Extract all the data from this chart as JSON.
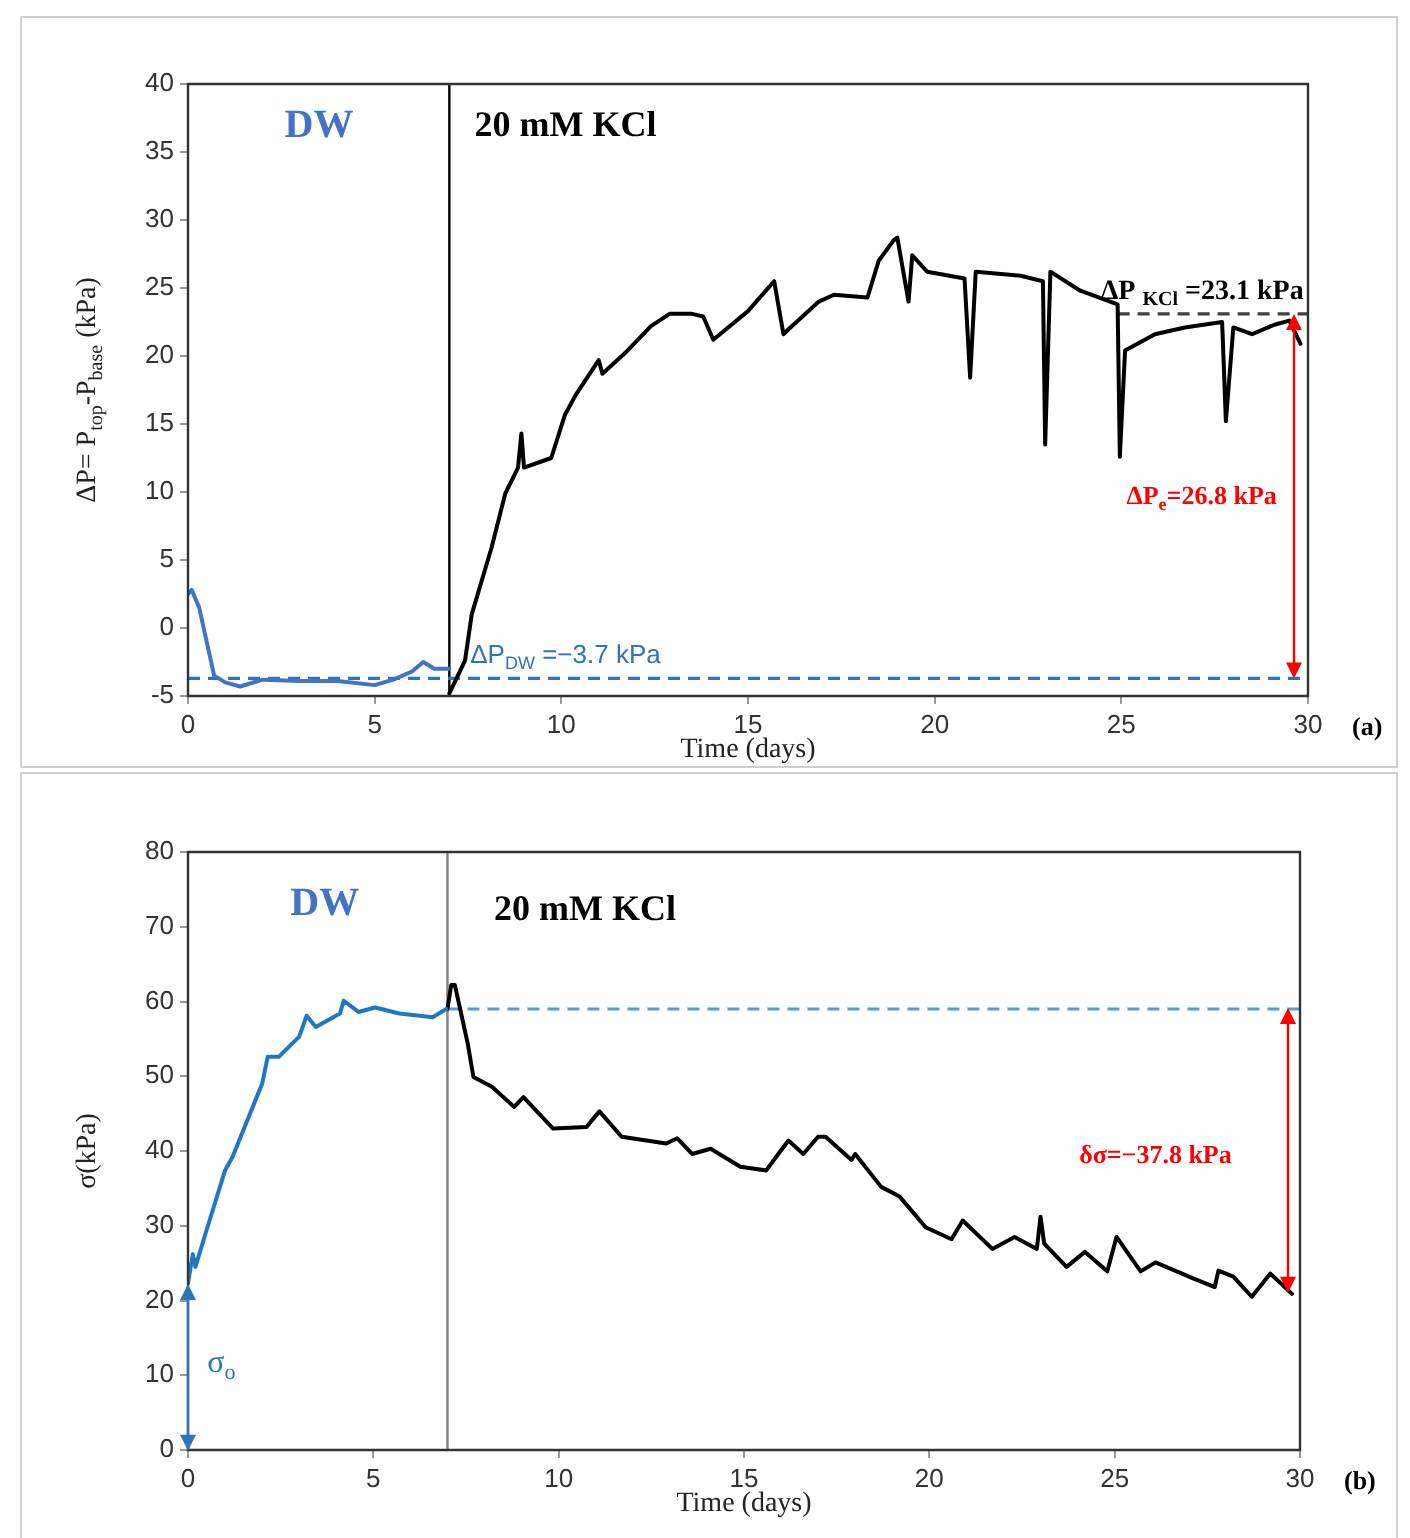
{
  "chart_data": [
    {
      "type": "line",
      "xlabel": "Time (days)",
      "ylabel": "ΔP= P$_{top}$-P$_{base}$ (kPa)",
      "xlim": [
        0,
        30
      ],
      "xticks": [
        0,
        5,
        10,
        15,
        20,
        25,
        30
      ],
      "ylim": [
        -5,
        40
      ],
      "yticks": [
        -5,
        0,
        5,
        10,
        15,
        20,
        25,
        30,
        35,
        40
      ],
      "grid": false,
      "legend": false,
      "marker": "none",
      "line_style": "solid",
      "series": [
        {
          "color": "#4472c4",
          "x": [
            0,
            0.1,
            0.3,
            0.5,
            0.7,
            1,
            1.4,
            2,
            3,
            4,
            5,
            5.5,
            6,
            6.3,
            6.6,
            7
          ],
          "values": [
            2.5,
            2.8,
            1.5,
            -1,
            -3.5,
            -4,
            -4.3,
            -3.8,
            -3.9,
            -3.9,
            -4.2,
            -3.8,
            -3.2,
            -2.5,
            -3,
            -3
          ]
        },
        {
          "color": "#000000",
          "x": [
            7,
            7.42,
            7.6,
            8.13,
            8.5,
            8.84,
            8.93,
            9,
            9.73,
            10.1,
            10.4,
            11,
            11.1,
            11.7,
            12.4,
            12.9,
            13.5,
            13.8,
            14.07,
            15,
            15.7,
            15.95,
            16.1,
            16.9,
            17.3,
            18.2,
            18.5,
            18.9,
            19,
            19.3,
            19.4,
            19.8,
            20.8,
            20.95,
            21.1,
            22.3,
            22.9,
            22.96,
            23.1,
            23.9,
            24.9,
            24.96,
            25.1,
            25.9,
            26.7,
            27.7,
            27.8,
            28,
            28.5,
            29.1,
            29.5,
            29.8
          ],
          "values": [
            -4.8,
            -2.4,
            1,
            5.9,
            9.9,
            11.8,
            14.3,
            11.8,
            12.5,
            15.7,
            17.2,
            19.7,
            18.7,
            20.2,
            22.2,
            23.1,
            23.1,
            22.9,
            21.2,
            23.3,
            25.5,
            21.6,
            22,
            24,
            24.5,
            24.3,
            27,
            28.5,
            28.7,
            24,
            27.4,
            26.2,
            25.7,
            18.4,
            26.2,
            25.9,
            25.5,
            13.5,
            26.2,
            24.8,
            23.8,
            12.6,
            20.4,
            21.6,
            22.1,
            22.5,
            15.2,
            22.1,
            21.6,
            22.3,
            22.6,
            20.9
          ]
        }
      ],
      "ref_lines": [
        {
          "axis": "x",
          "value": 7,
          "color": "#000000"
        },
        {
          "axis": "y",
          "value": -3.7,
          "label": "ΔP$_{DW}$ =−3.7 kPa",
          "color": "#2e75b6",
          "line_style": "dashed"
        },
        {
          "axis": "y",
          "value": 23.1,
          "label": "ΔP $_{KCl}$ =23.1 kPa",
          "color": "#404040",
          "line_style": "dashed"
        }
      ],
      "annotations": [
        "DW",
        "20 mM KCl",
        "ΔP$_{e}$=26.8 kPa",
        "(a)"
      ]
    },
    {
      "type": "line",
      "xlabel": "Time (days)",
      "ylabel": "σ(kPa)",
      "xlim": [
        0,
        30
      ],
      "xticks": [
        0,
        5,
        10,
        15,
        20,
        25,
        30
      ],
      "ylim": [
        0,
        80
      ],
      "yticks": [
        0,
        10,
        20,
        30,
        40,
        50,
        60,
        70,
        80
      ],
      "grid": false,
      "legend": false,
      "marker": "none",
      "line_style": "solid",
      "series": [
        {
          "color": "#1f77c4",
          "x": [
            0,
            0.13,
            0.2,
            0.5,
            1,
            1.2,
            2,
            2.15,
            2.45,
            3,
            3.2,
            3.45,
            4.1,
            4.2,
            4.6,
            5.05,
            5.7,
            6.6,
            6.97
          ],
          "values": [
            22.3,
            26.2,
            24.5,
            29.4,
            37.4,
            39.2,
            49,
            52.6,
            52.6,
            55.3,
            58.1,
            56.6,
            58.4,
            60.1,
            58.6,
            59.2,
            58.4,
            57.9,
            59
          ]
        },
        {
          "color": "#000000",
          "x": [
            7,
            7.1,
            7.2,
            7.55,
            7.7,
            8.2,
            8.8,
            9.05,
            9.85,
            10.75,
            11.1,
            11.7,
            12.9,
            13.2,
            13.6,
            14.1,
            14.9,
            15.6,
            16,
            16.2,
            16.6,
            17,
            17.2,
            17.9,
            18,
            18.7,
            19.2,
            19.9,
            20.6,
            20.9,
            21.7,
            22.3,
            22.9,
            23,
            23.1,
            23.7,
            24.2,
            24.8,
            25.05,
            25.7,
            26.1,
            27.1,
            27.7,
            27.8,
            28.2,
            28.7,
            29.2,
            29.78
          ],
          "values": [
            59,
            62.2,
            62.2,
            54.3,
            49.9,
            48.6,
            45.9,
            47.2,
            43,
            43.2,
            45.3,
            41.9,
            41,
            41.7,
            39.6,
            40.3,
            37.9,
            37.4,
            40.1,
            41.4,
            39.6,
            41.9,
            41.9,
            38.8,
            39.6,
            35.2,
            33.9,
            29.8,
            28.2,
            30.7,
            26.9,
            28.5,
            26.9,
            31.2,
            27.6,
            24.5,
            26.5,
            23.9,
            28.5,
            23.9,
            25.1,
            23,
            21.8,
            24,
            23.2,
            20.5,
            23.6,
            20.9
          ]
        }
      ],
      "ref_lines": [
        {
          "axis": "x",
          "value": 7,
          "color": "#808080"
        },
        {
          "axis": "y",
          "value": 59,
          "color": "#5b9bd5",
          "line_style": "dashed"
        }
      ],
      "annotations": [
        "DW",
        "20 mM KCl",
        "δσ=−37.8 kPa",
        "σ$_{o}$",
        "(b)"
      ]
    }
  ]
}
